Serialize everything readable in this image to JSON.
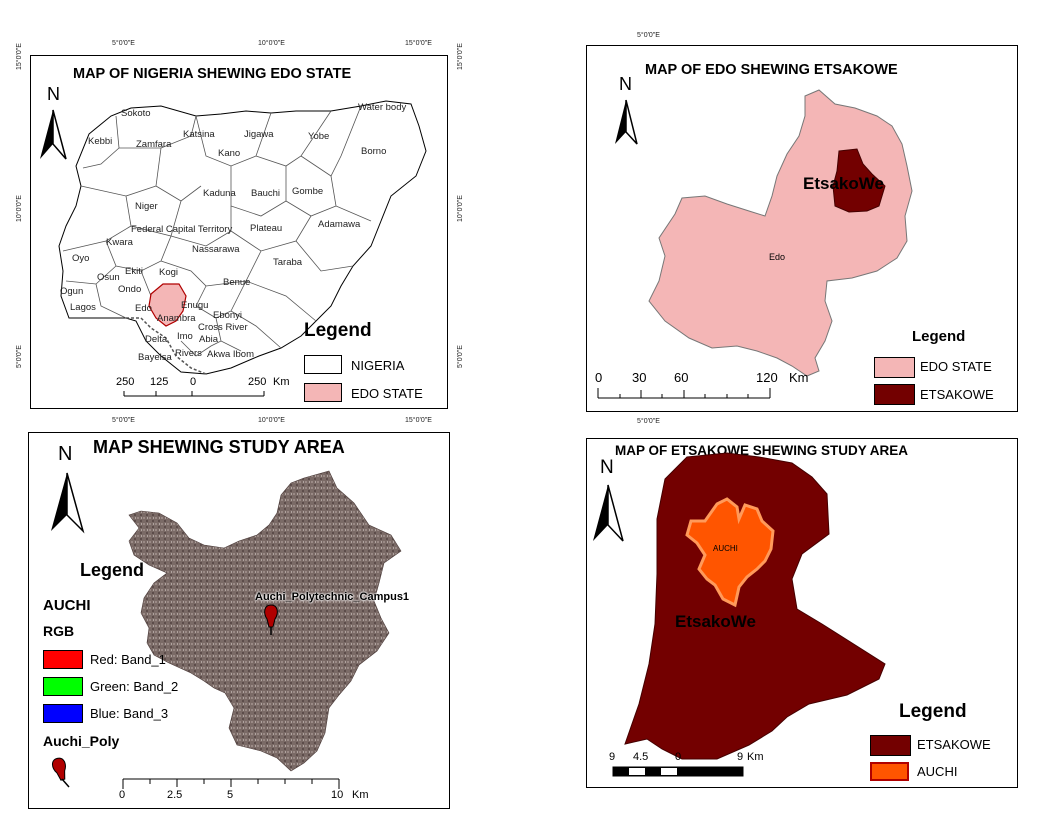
{
  "colors": {
    "nigeria_fill": "#ffffff",
    "edo_fill": "#f4b6b6",
    "etsakowe_fill": "#730000",
    "auchi_fill": "#ff5500",
    "auchi_outline": "#ff9a5a",
    "satellite": "#7a6a66",
    "red_band": "#ff0000",
    "green_band": "#00ff00",
    "blue_band": "#0000ff"
  },
  "panel_nigeria": {
    "title": "MAP OF NIGERIA SHEWING  EDO STATE",
    "north": "N",
    "top_ticks": [
      "5°0'0\"E",
      "10°0'0\"E",
      "15°0'0\"E"
    ],
    "bottom_ticks": [
      "5°0'0\"E",
      "10°0'0\"E",
      "15°0'0\"E"
    ],
    "left_ticks": [
      "15°0'0\"E",
      "10°0'0\"E",
      "5°0'0\"E"
    ],
    "right_ticks": [
      "15°0'0\"E",
      "10°0'0\"E",
      "5°0'0\"E"
    ],
    "states": [
      "Sokoto",
      "Kebbi",
      "Zamfara",
      "Katsina",
      "Kano",
      "Jigawa",
      "Yobe",
      "Borno",
      "Water body",
      "Kaduna",
      "Bauchi",
      "Gombe",
      "Niger",
      "Federal Capital Territory",
      "Plateau",
      "Adamawa",
      "Nassarawa",
      "Kwara",
      "Oyo",
      "Osun",
      "Ekiti",
      "Kogi",
      "Taraba",
      "Ogun",
      "Ondo",
      "Benue",
      "Lagos",
      "Edo",
      "Enugu",
      "Anambra",
      "Ebonyi",
      "Cross River",
      "Delta",
      "Imo",
      "Abia",
      "Rivers",
      "Bayelsa",
      "Akwa Ibom"
    ],
    "legend_title": "Legend",
    "legend": [
      "NIGERIA",
      "EDO STATE"
    ],
    "scale": [
      "250",
      "125",
      "0",
      "250",
      "Km"
    ]
  },
  "panel_edo": {
    "title": "MAP OF EDO SHEWING  ETSAKOWE",
    "north": "N",
    "top_tick": "5°0'0\"E",
    "bottom_tick": "5°0'0\"E",
    "etsakowe_label": "EtsakoWe",
    "edo_label": "Edo",
    "legend_title": "Legend",
    "legend": [
      "EDO STATE",
      "ETSAKOWE"
    ],
    "scale": [
      "0",
      "30",
      "60",
      "120",
      "Km"
    ]
  },
  "panel_study": {
    "title": "MAP SHEWING STUDY AREA",
    "north": "N",
    "legend_title": "Legend",
    "layer": "AUCHI",
    "rgb": "RGB",
    "bands": [
      "Red:   Band_1",
      "Green: Band_2",
      "Blue:   Band_3"
    ],
    "poly_layer": "Auchi_Poly",
    "campus_label": "Auchi_Polytechnic_Campus1",
    "scale": [
      "0",
      "2.5",
      "5",
      "10",
      "Km"
    ]
  },
  "panel_etsakowe": {
    "title": "MAP OF ETSAKOWE SHEWING STUDY AREA",
    "north": "N",
    "auchi_label": "AUCHI",
    "etsakowe_label": "EtsakoWe",
    "legend_title": "Legend",
    "legend": [
      "ETSAKOWE",
      "AUCHI"
    ],
    "scale": [
      "9",
      "4.5",
      "0",
      "9",
      "Km"
    ]
  }
}
